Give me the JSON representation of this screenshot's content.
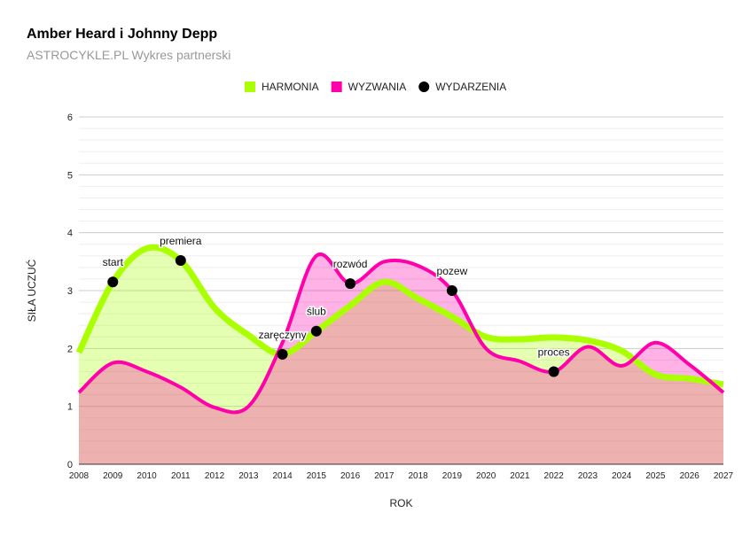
{
  "chart_data": {
    "type": "area",
    "title": "Amber Heard i Johnny Depp",
    "subtitle": "ASTROCYKLE.PL Wykres partnerski",
    "xlabel": "ROK",
    "ylabel": "SIŁA UCZUĆ",
    "xlim": [
      2008,
      2027
    ],
    "ylim": [
      0,
      6
    ],
    "yticks": [
      0,
      1,
      2,
      3,
      4,
      5,
      6
    ],
    "x": [
      2008,
      2009,
      2010,
      2011,
      2012,
      2013,
      2014,
      2015,
      2016,
      2017,
      2018,
      2019,
      2020,
      2021,
      2022,
      2023,
      2024,
      2025,
      2026,
      2027
    ],
    "grid": true,
    "legend_position": "top",
    "series": [
      {
        "name": "HARMONIA",
        "color": "#aaff00",
        "values": [
          1.93,
          3.15,
          3.73,
          3.52,
          2.7,
          2.23,
          1.9,
          2.3,
          2.74,
          3.15,
          2.86,
          2.55,
          2.2,
          2.16,
          2.19,
          2.14,
          1.96,
          1.55,
          1.48,
          1.38
        ]
      },
      {
        "name": "WYZWANIA",
        "color": "#ff00aa",
        "values": [
          1.24,
          1.75,
          1.6,
          1.33,
          0.98,
          1.0,
          2.1,
          3.6,
          3.12,
          3.5,
          3.43,
          3.0,
          2.0,
          1.78,
          1.6,
          2.03,
          1.7,
          2.1,
          1.72,
          1.24
        ]
      }
    ],
    "events": {
      "name": "WYDARZENIA",
      "color": "#000000",
      "points": [
        {
          "x": 2009,
          "y": 3.15,
          "label": "start"
        },
        {
          "x": 2011,
          "y": 3.52,
          "label": "premiera"
        },
        {
          "x": 2014,
          "y": 1.9,
          "label": "zaręczyny"
        },
        {
          "x": 2015,
          "y": 2.3,
          "label": "ślub"
        },
        {
          "x": 2016,
          "y": 3.12,
          "label": "rozwód"
        },
        {
          "x": 2019,
          "y": 3.0,
          "label": "pozew"
        },
        {
          "x": 2022,
          "y": 1.6,
          "label": "proces"
        }
      ]
    }
  }
}
